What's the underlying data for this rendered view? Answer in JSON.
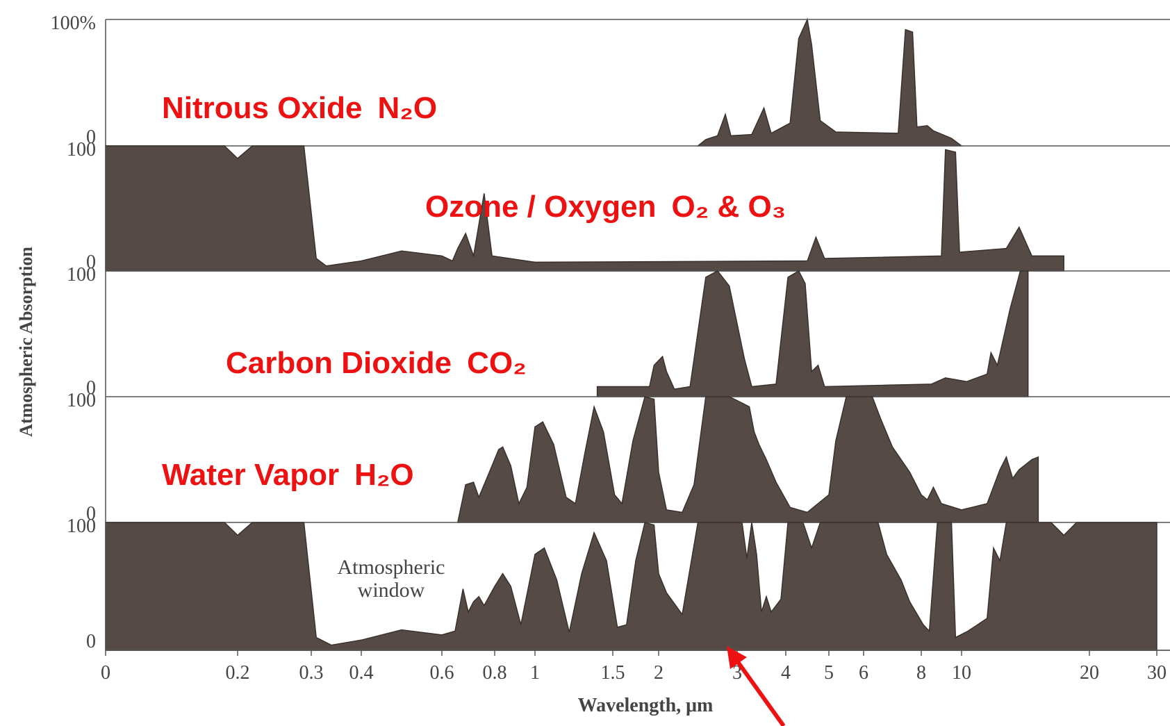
{
  "chart_data": {
    "type": "area",
    "title": "",
    "xlabel": "Wavelength, μm",
    "ylabel": "Atmospheric Absorption",
    "x_ticks": [
      "0",
      "0.2",
      "0.3",
      "0.4",
      "0.6",
      "0.8",
      "1",
      "1.5",
      "2",
      "3",
      "4",
      "5",
      "6",
      "8",
      "10",
      "20",
      "30"
    ],
    "annotation": "Atmospheric\nwindow",
    "fill_color": "#554a45",
    "label_color": "#ee1111",
    "grid": false,
    "panels": [
      {
        "name": "Nitrous Oxide",
        "formula": "N₂O",
        "y_ticks": [
          "100%",
          "0"
        ],
        "ylim": [
          0,
          100
        ],
        "points": [
          [
            2.5,
            0
          ],
          [
            2.6,
            5
          ],
          [
            2.75,
            8
          ],
          [
            2.85,
            25
          ],
          [
            2.92,
            8
          ],
          [
            3.3,
            9
          ],
          [
            3.55,
            30
          ],
          [
            3.7,
            10
          ],
          [
            4.1,
            18
          ],
          [
            4.3,
            85
          ],
          [
            4.5,
            100
          ],
          [
            4.6,
            80
          ],
          [
            4.8,
            20
          ],
          [
            5.2,
            11
          ],
          [
            7.2,
            10
          ],
          [
            7.45,
            92
          ],
          [
            7.7,
            90
          ],
          [
            7.85,
            15
          ],
          [
            8.3,
            16
          ],
          [
            8.6,
            12
          ],
          [
            9.5,
            6
          ],
          [
            10,
            0
          ]
        ]
      },
      {
        "name": "Ozone / Oxygen",
        "formula": "O₂  &  O₃",
        "y_ticks": [
          "100",
          "0"
        ],
        "ylim": [
          0,
          100
        ],
        "points": [
          [
            0,
            100
          ],
          [
            0.18,
            100
          ],
          [
            0.2,
            90
          ],
          [
            0.22,
            100
          ],
          [
            0.29,
            100
          ],
          [
            0.31,
            10
          ],
          [
            0.33,
            4
          ],
          [
            0.4,
            8
          ],
          [
            0.5,
            16
          ],
          [
            0.6,
            12
          ],
          [
            0.64,
            8
          ],
          [
            0.66,
            18
          ],
          [
            0.69,
            30
          ],
          [
            0.72,
            12
          ],
          [
            0.76,
            62
          ],
          [
            0.79,
            12
          ],
          [
            1,
            7
          ],
          [
            4.5,
            8
          ],
          [
            4.7,
            27
          ],
          [
            4.9,
            10
          ],
          [
            9,
            12
          ],
          [
            9.2,
            97
          ],
          [
            9.7,
            95
          ],
          [
            9.9,
            15
          ],
          [
            13.5,
            18
          ],
          [
            14.5,
            35
          ],
          [
            15.5,
            12
          ],
          [
            18,
            12
          ],
          [
            18,
            0
          ]
        ]
      },
      {
        "name": "Carbon Dioxide",
        "formula": "CO₂",
        "y_ticks": [
          "100",
          "0"
        ],
        "ylim": [
          0,
          100
        ],
        "points": [
          [
            1.4,
            0
          ],
          [
            1.4,
            8
          ],
          [
            1.9,
            8
          ],
          [
            1.95,
            25
          ],
          [
            2.05,
            32
          ],
          [
            2.1,
            20
          ],
          [
            2.2,
            6
          ],
          [
            2.4,
            8
          ],
          [
            2.6,
            95
          ],
          [
            2.75,
            100
          ],
          [
            2.9,
            88
          ],
          [
            3.15,
            30
          ],
          [
            3.3,
            8
          ],
          [
            3.8,
            10
          ],
          [
            4.05,
            95
          ],
          [
            4.3,
            100
          ],
          [
            4.45,
            90
          ],
          [
            4.6,
            20
          ],
          [
            4.75,
            25
          ],
          [
            4.9,
            8
          ],
          [
            8.5,
            10
          ],
          [
            9.2,
            15
          ],
          [
            10.4,
            12
          ],
          [
            12,
            18
          ],
          [
            12.3,
            35
          ],
          [
            12.8,
            25
          ],
          [
            13.8,
            70
          ],
          [
            14.6,
            100
          ],
          [
            15.2,
            100
          ],
          [
            15.2,
            0
          ]
        ]
      },
      {
        "name": "Water Vapor",
        "formula": "H₂O",
        "y_ticks": [
          "100",
          "0"
        ],
        "ylim": [
          0,
          100
        ],
        "points": [
          [
            0.66,
            0
          ],
          [
            0.69,
            30
          ],
          [
            0.72,
            32
          ],
          [
            0.74,
            20
          ],
          [
            0.78,
            40
          ],
          [
            0.82,
            58
          ],
          [
            0.84,
            60
          ],
          [
            0.88,
            45
          ],
          [
            0.92,
            15
          ],
          [
            0.96,
            28
          ],
          [
            1,
            76
          ],
          [
            1.05,
            80
          ],
          [
            1.12,
            62
          ],
          [
            1.2,
            20
          ],
          [
            1.26,
            15
          ],
          [
            1.32,
            55
          ],
          [
            1.38,
            92
          ],
          [
            1.44,
            72
          ],
          [
            1.52,
            22
          ],
          [
            1.6,
            15
          ],
          [
            1.72,
            65
          ],
          [
            1.85,
            100
          ],
          [
            1.95,
            98
          ],
          [
            2,
            40
          ],
          [
            2.1,
            10
          ],
          [
            2.3,
            8
          ],
          [
            2.45,
            30
          ],
          [
            2.6,
            100
          ],
          [
            2.9,
            100
          ],
          [
            3.1,
            95
          ],
          [
            3.25,
            92
          ],
          [
            3.35,
            72
          ],
          [
            3.45,
            62
          ],
          [
            3.6,
            50
          ],
          [
            3.8,
            32
          ],
          [
            4.1,
            12
          ],
          [
            4.5,
            8
          ],
          [
            5,
            22
          ],
          [
            5.2,
            65
          ],
          [
            5.5,
            100
          ],
          [
            6.3,
            100
          ],
          [
            6.6,
            82
          ],
          [
            7,
            60
          ],
          [
            7.6,
            40
          ],
          [
            8,
            22
          ],
          [
            8.3,
            18
          ],
          [
            8.6,
            28
          ],
          [
            9,
            15
          ],
          [
            10,
            10
          ],
          [
            12,
            15
          ],
          [
            13,
            42
          ],
          [
            13.5,
            52
          ],
          [
            14,
            35
          ],
          [
            14.5,
            42
          ],
          [
            15.5,
            50
          ],
          [
            16,
            52
          ],
          [
            16,
            0
          ]
        ]
      },
      {
        "name": "",
        "formula": "",
        "y_ticks": [
          "100",
          "0"
        ],
        "ylim": [
          0,
          100
        ],
        "points": [
          [
            0,
            100
          ],
          [
            0.18,
            100
          ],
          [
            0.2,
            90
          ],
          [
            0.22,
            100
          ],
          [
            0.29,
            100
          ],
          [
            0.31,
            10
          ],
          [
            0.34,
            4
          ],
          [
            0.4,
            8
          ],
          [
            0.5,
            16
          ],
          [
            0.6,
            12
          ],
          [
            0.65,
            15
          ],
          [
            0.68,
            48
          ],
          [
            0.7,
            30
          ],
          [
            0.72,
            38
          ],
          [
            0.74,
            42
          ],
          [
            0.76,
            35
          ],
          [
            0.8,
            50
          ],
          [
            0.84,
            60
          ],
          [
            0.88,
            50
          ],
          [
            0.93,
            20
          ],
          [
            1,
            75
          ],
          [
            1.06,
            80
          ],
          [
            1.14,
            55
          ],
          [
            1.22,
            14
          ],
          [
            1.3,
            60
          ],
          [
            1.38,
            92
          ],
          [
            1.46,
            70
          ],
          [
            1.55,
            18
          ],
          [
            1.65,
            20
          ],
          [
            1.75,
            70
          ],
          [
            1.85,
            100
          ],
          [
            1.95,
            98
          ],
          [
            2,
            60
          ],
          [
            2.1,
            45
          ],
          [
            2.3,
            28
          ],
          [
            2.5,
            100
          ],
          [
            2.9,
            100
          ],
          [
            3.1,
            100
          ],
          [
            3.2,
            72
          ],
          [
            3.3,
            100
          ],
          [
            3.4,
            75
          ],
          [
            3.5,
            30
          ],
          [
            3.6,
            42
          ],
          [
            3.7,
            30
          ],
          [
            3.9,
            40
          ],
          [
            4.05,
            100
          ],
          [
            4.4,
            100
          ],
          [
            4.6,
            80
          ],
          [
            4.8,
            100
          ],
          [
            6.5,
            100
          ],
          [
            6.8,
            75
          ],
          [
            7.3,
            55
          ],
          [
            7.6,
            38
          ],
          [
            8.1,
            20
          ],
          [
            8.4,
            15
          ],
          [
            8.8,
            100
          ],
          [
            9.2,
            100
          ],
          [
            9.5,
            100
          ],
          [
            9.7,
            10
          ],
          [
            10.5,
            15
          ],
          [
            12,
            25
          ],
          [
            12.5,
            80
          ],
          [
            13,
            70
          ],
          [
            13.5,
            100
          ],
          [
            17,
            100
          ],
          [
            18,
            90
          ],
          [
            19,
            100
          ],
          [
            30,
            100
          ],
          [
            30,
            0
          ]
        ]
      }
    ]
  }
}
